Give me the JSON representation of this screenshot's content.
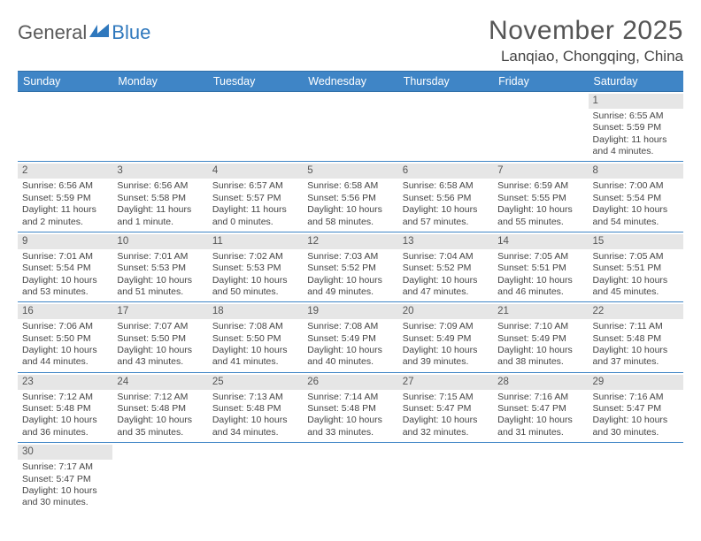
{
  "logo": {
    "left": "General",
    "right": "Blue",
    "swoosh_color": "#2f78bd"
  },
  "title": "November 2025",
  "location": "Lanqiao, Chongqing, China",
  "colors": {
    "header_bg": "#3f85c6",
    "header_text": "#ffffff",
    "daynum_bg": "#e6e6e6",
    "rule": "#3f85c6",
    "text": "#444444"
  },
  "weekdays": [
    "Sunday",
    "Monday",
    "Tuesday",
    "Wednesday",
    "Thursday",
    "Friday",
    "Saturday"
  ],
  "weeks": [
    [
      null,
      null,
      null,
      null,
      null,
      null,
      {
        "n": "1",
        "sr": "6:55 AM",
        "ss": "5:59 PM",
        "dl": "11 hours and 4 minutes."
      }
    ],
    [
      {
        "n": "2",
        "sr": "6:56 AM",
        "ss": "5:59 PM",
        "dl": "11 hours and 2 minutes."
      },
      {
        "n": "3",
        "sr": "6:56 AM",
        "ss": "5:58 PM",
        "dl": "11 hours and 1 minute."
      },
      {
        "n": "4",
        "sr": "6:57 AM",
        "ss": "5:57 PM",
        "dl": "11 hours and 0 minutes."
      },
      {
        "n": "5",
        "sr": "6:58 AM",
        "ss": "5:56 PM",
        "dl": "10 hours and 58 minutes."
      },
      {
        "n": "6",
        "sr": "6:58 AM",
        "ss": "5:56 PM",
        "dl": "10 hours and 57 minutes."
      },
      {
        "n": "7",
        "sr": "6:59 AM",
        "ss": "5:55 PM",
        "dl": "10 hours and 55 minutes."
      },
      {
        "n": "8",
        "sr": "7:00 AM",
        "ss": "5:54 PM",
        "dl": "10 hours and 54 minutes."
      }
    ],
    [
      {
        "n": "9",
        "sr": "7:01 AM",
        "ss": "5:54 PM",
        "dl": "10 hours and 53 minutes."
      },
      {
        "n": "10",
        "sr": "7:01 AM",
        "ss": "5:53 PM",
        "dl": "10 hours and 51 minutes."
      },
      {
        "n": "11",
        "sr": "7:02 AM",
        "ss": "5:53 PM",
        "dl": "10 hours and 50 minutes."
      },
      {
        "n": "12",
        "sr": "7:03 AM",
        "ss": "5:52 PM",
        "dl": "10 hours and 49 minutes."
      },
      {
        "n": "13",
        "sr": "7:04 AM",
        "ss": "5:52 PM",
        "dl": "10 hours and 47 minutes."
      },
      {
        "n": "14",
        "sr": "7:05 AM",
        "ss": "5:51 PM",
        "dl": "10 hours and 46 minutes."
      },
      {
        "n": "15",
        "sr": "7:05 AM",
        "ss": "5:51 PM",
        "dl": "10 hours and 45 minutes."
      }
    ],
    [
      {
        "n": "16",
        "sr": "7:06 AM",
        "ss": "5:50 PM",
        "dl": "10 hours and 44 minutes."
      },
      {
        "n": "17",
        "sr": "7:07 AM",
        "ss": "5:50 PM",
        "dl": "10 hours and 43 minutes."
      },
      {
        "n": "18",
        "sr": "7:08 AM",
        "ss": "5:50 PM",
        "dl": "10 hours and 41 minutes."
      },
      {
        "n": "19",
        "sr": "7:08 AM",
        "ss": "5:49 PM",
        "dl": "10 hours and 40 minutes."
      },
      {
        "n": "20",
        "sr": "7:09 AM",
        "ss": "5:49 PM",
        "dl": "10 hours and 39 minutes."
      },
      {
        "n": "21",
        "sr": "7:10 AM",
        "ss": "5:49 PM",
        "dl": "10 hours and 38 minutes."
      },
      {
        "n": "22",
        "sr": "7:11 AM",
        "ss": "5:48 PM",
        "dl": "10 hours and 37 minutes."
      }
    ],
    [
      {
        "n": "23",
        "sr": "7:12 AM",
        "ss": "5:48 PM",
        "dl": "10 hours and 36 minutes."
      },
      {
        "n": "24",
        "sr": "7:12 AM",
        "ss": "5:48 PM",
        "dl": "10 hours and 35 minutes."
      },
      {
        "n": "25",
        "sr": "7:13 AM",
        "ss": "5:48 PM",
        "dl": "10 hours and 34 minutes."
      },
      {
        "n": "26",
        "sr": "7:14 AM",
        "ss": "5:48 PM",
        "dl": "10 hours and 33 minutes."
      },
      {
        "n": "27",
        "sr": "7:15 AM",
        "ss": "5:47 PM",
        "dl": "10 hours and 32 minutes."
      },
      {
        "n": "28",
        "sr": "7:16 AM",
        "ss": "5:47 PM",
        "dl": "10 hours and 31 minutes."
      },
      {
        "n": "29",
        "sr": "7:16 AM",
        "ss": "5:47 PM",
        "dl": "10 hours and 30 minutes."
      }
    ],
    [
      {
        "n": "30",
        "sr": "7:17 AM",
        "ss": "5:47 PM",
        "dl": "10 hours and 30 minutes."
      },
      null,
      null,
      null,
      null,
      null,
      null
    ]
  ],
  "labels": {
    "sunrise": "Sunrise:",
    "sunset": "Sunset:",
    "daylight": "Daylight:"
  }
}
